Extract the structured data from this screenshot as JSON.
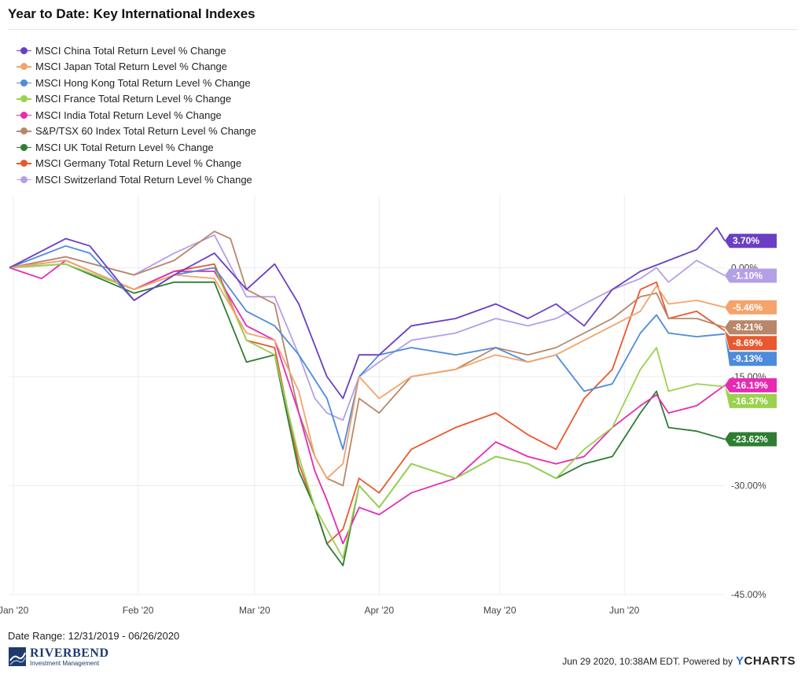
{
  "page": {
    "title": "Year to Date: Key International Indexes",
    "date_range": "Date Range: 12/31/2019 - 06/26/2020",
    "footer_stamp": "Jun 29 2020, 10:38AM EDT. Powered by",
    "brand": "YCHARTS",
    "logo_main": "RIVERBEND",
    "logo_sub": "Investment Management"
  },
  "chart_data": {
    "type": "line",
    "xlim": [
      "2019-12-31",
      "2020-06-26"
    ],
    "ylim": [
      -45,
      10
    ],
    "y_ticks": [
      0,
      -15,
      -30,
      -45
    ],
    "y_tick_labels": [
      "0.00%",
      "-15.00%",
      "-30.00%",
      "-45.00%"
    ],
    "x_ticks": [
      "2020-01-01",
      "2020-02-01",
      "2020-03-01",
      "2020-04-01",
      "2020-05-01",
      "2020-06-01"
    ],
    "x_tick_labels": [
      "Jan '20",
      "Feb '20",
      "Mar '20",
      "Apr '20",
      "May '20",
      "Jun '20"
    ],
    "grid": true,
    "legend_position": "top-left",
    "series": [
      {
        "name": "MSCI China Total Return Level % Change",
        "color": "#6a3fc4",
        "end_label": "3.70%",
        "points": [
          [
            "2019-12-31",
            0
          ],
          [
            "2020-01-14",
            4
          ],
          [
            "2020-01-20",
            3
          ],
          [
            "2020-01-31",
            -4.5
          ],
          [
            "2020-02-10",
            -1
          ],
          [
            "2020-02-20",
            2
          ],
          [
            "2020-02-28",
            -3
          ],
          [
            "2020-03-06",
            0.5
          ],
          [
            "2020-03-12",
            -5
          ],
          [
            "2020-03-19",
            -15
          ],
          [
            "2020-03-23",
            -18
          ],
          [
            "2020-03-27",
            -12
          ],
          [
            "2020-04-01",
            -12
          ],
          [
            "2020-04-09",
            -8
          ],
          [
            "2020-04-20",
            -7
          ],
          [
            "2020-04-30",
            -5
          ],
          [
            "2020-05-08",
            -7
          ],
          [
            "2020-05-15",
            -5
          ],
          [
            "2020-05-22",
            -8
          ],
          [
            "2020-05-29",
            -3
          ],
          [
            "2020-06-05",
            -0.5
          ],
          [
            "2020-06-12",
            1
          ],
          [
            "2020-06-19",
            2.5
          ],
          [
            "2020-06-24",
            5.5
          ],
          [
            "2020-06-26",
            3.7
          ]
        ]
      },
      {
        "name": "MSCI Japan Total Return Level % Change",
        "color": "#f4a36b",
        "end_label": "-5.46%",
        "points": [
          [
            "2019-12-31",
            0
          ],
          [
            "2020-01-14",
            1
          ],
          [
            "2020-01-31",
            -3
          ],
          [
            "2020-02-10",
            -1
          ],
          [
            "2020-02-20",
            -1.5
          ],
          [
            "2020-02-28",
            -9
          ],
          [
            "2020-03-06",
            -10
          ],
          [
            "2020-03-12",
            -17
          ],
          [
            "2020-03-16",
            -26
          ],
          [
            "2020-03-19",
            -29
          ],
          [
            "2020-03-23",
            -27
          ],
          [
            "2020-03-27",
            -15
          ],
          [
            "2020-04-01",
            -18
          ],
          [
            "2020-04-09",
            -15
          ],
          [
            "2020-04-20",
            -14
          ],
          [
            "2020-04-30",
            -12
          ],
          [
            "2020-05-08",
            -13
          ],
          [
            "2020-05-15",
            -12
          ],
          [
            "2020-05-22",
            -10
          ],
          [
            "2020-05-29",
            -8
          ],
          [
            "2020-06-05",
            -6
          ],
          [
            "2020-06-09",
            -2.5
          ],
          [
            "2020-06-12",
            -5
          ],
          [
            "2020-06-19",
            -4.5
          ],
          [
            "2020-06-26",
            -5.46
          ]
        ]
      },
      {
        "name": "MSCI Hong Kong Total Return Level % Change",
        "color": "#4d8bdc",
        "end_label": "-9.13%",
        "points": [
          [
            "2019-12-31",
            0
          ],
          [
            "2020-01-14",
            3
          ],
          [
            "2020-01-20",
            2
          ],
          [
            "2020-01-31",
            -4.5
          ],
          [
            "2020-02-10",
            -1
          ],
          [
            "2020-02-20",
            0
          ],
          [
            "2020-02-28",
            -6
          ],
          [
            "2020-03-06",
            -8
          ],
          [
            "2020-03-12",
            -12
          ],
          [
            "2020-03-19",
            -18
          ],
          [
            "2020-03-23",
            -25
          ],
          [
            "2020-03-27",
            -15
          ],
          [
            "2020-04-01",
            -12
          ],
          [
            "2020-04-09",
            -11
          ],
          [
            "2020-04-20",
            -12
          ],
          [
            "2020-04-30",
            -11
          ],
          [
            "2020-05-08",
            -13
          ],
          [
            "2020-05-15",
            -12
          ],
          [
            "2020-05-22",
            -17
          ],
          [
            "2020-05-29",
            -16
          ],
          [
            "2020-06-05",
            -9
          ],
          [
            "2020-06-09",
            -6.5
          ],
          [
            "2020-06-12",
            -9
          ],
          [
            "2020-06-19",
            -9.5
          ],
          [
            "2020-06-26",
            -9.13
          ]
        ]
      },
      {
        "name": "MSCI France Total Return Level % Change",
        "color": "#9ad24f",
        "end_label": "-16.37%",
        "points": [
          [
            "2019-12-31",
            0
          ],
          [
            "2020-01-14",
            0.5
          ],
          [
            "2020-01-31",
            -3
          ],
          [
            "2020-02-10",
            -1
          ],
          [
            "2020-02-20",
            0
          ],
          [
            "2020-02-28",
            -10
          ],
          [
            "2020-03-06",
            -12
          ],
          [
            "2020-03-12",
            -26
          ],
          [
            "2020-03-16",
            -33
          ],
          [
            "2020-03-19",
            -36
          ],
          [
            "2020-03-23",
            -40
          ],
          [
            "2020-03-27",
            -30
          ],
          [
            "2020-04-01",
            -33
          ],
          [
            "2020-04-09",
            -27
          ],
          [
            "2020-04-20",
            -29
          ],
          [
            "2020-04-30",
            -26
          ],
          [
            "2020-05-08",
            -27
          ],
          [
            "2020-05-15",
            -29
          ],
          [
            "2020-05-22",
            -25
          ],
          [
            "2020-05-29",
            -22
          ],
          [
            "2020-06-05",
            -14
          ],
          [
            "2020-06-09",
            -11
          ],
          [
            "2020-06-12",
            -17
          ],
          [
            "2020-06-19",
            -16
          ],
          [
            "2020-06-26",
            -16.37
          ]
        ]
      },
      {
        "name": "MSCI India Total Return Level % Change",
        "color": "#e62bb2",
        "end_label": "-16.19%",
        "points": [
          [
            "2019-12-31",
            0
          ],
          [
            "2020-01-08",
            -1.5
          ],
          [
            "2020-01-14",
            1
          ],
          [
            "2020-01-31",
            -3
          ],
          [
            "2020-02-10",
            -0.5
          ],
          [
            "2020-02-20",
            -0.5
          ],
          [
            "2020-02-28",
            -8
          ],
          [
            "2020-03-06",
            -10
          ],
          [
            "2020-03-12",
            -20
          ],
          [
            "2020-03-16",
            -28
          ],
          [
            "2020-03-19",
            -32
          ],
          [
            "2020-03-23",
            -38
          ],
          [
            "2020-03-27",
            -33
          ],
          [
            "2020-04-01",
            -34
          ],
          [
            "2020-04-09",
            -31
          ],
          [
            "2020-04-20",
            -29
          ],
          [
            "2020-04-30",
            -24
          ],
          [
            "2020-05-08",
            -26
          ],
          [
            "2020-05-15",
            -27
          ],
          [
            "2020-05-22",
            -26
          ],
          [
            "2020-05-29",
            -22
          ],
          [
            "2020-06-05",
            -19
          ],
          [
            "2020-06-09",
            -17.5
          ],
          [
            "2020-06-12",
            -20
          ],
          [
            "2020-06-19",
            -19
          ],
          [
            "2020-06-26",
            -16.19
          ]
        ]
      },
      {
        "name": "S&P/TSX 60 Index Total Return Level % Change",
        "color": "#b8876a",
        "end_label": "-8.21%",
        "points": [
          [
            "2019-12-31",
            0
          ],
          [
            "2020-01-14",
            1.5
          ],
          [
            "2020-01-31",
            -1
          ],
          [
            "2020-02-10",
            1
          ],
          [
            "2020-02-20",
            5
          ],
          [
            "2020-02-24",
            4
          ],
          [
            "2020-02-28",
            -3
          ],
          [
            "2020-03-06",
            -5
          ],
          [
            "2020-03-12",
            -20
          ],
          [
            "2020-03-16",
            -26
          ],
          [
            "2020-03-19",
            -29
          ],
          [
            "2020-03-23",
            -30
          ],
          [
            "2020-03-27",
            -18
          ],
          [
            "2020-04-01",
            -20
          ],
          [
            "2020-04-09",
            -15
          ],
          [
            "2020-04-20",
            -14
          ],
          [
            "2020-04-30",
            -11
          ],
          [
            "2020-05-08",
            -12
          ],
          [
            "2020-05-15",
            -11
          ],
          [
            "2020-05-22",
            -9
          ],
          [
            "2020-05-29",
            -7
          ],
          [
            "2020-06-05",
            -4
          ],
          [
            "2020-06-09",
            -3.5
          ],
          [
            "2020-06-12",
            -7
          ],
          [
            "2020-06-19",
            -7
          ],
          [
            "2020-06-26",
            -8.21
          ]
        ]
      },
      {
        "name": "MSCI UK Total Return Level % Change",
        "color": "#2e7d32",
        "end_label": "-23.62%",
        "points": [
          [
            "2019-12-31",
            0
          ],
          [
            "2020-01-14",
            0.5
          ],
          [
            "2020-01-31",
            -3.5
          ],
          [
            "2020-02-10",
            -2
          ],
          [
            "2020-02-20",
            -2
          ],
          [
            "2020-02-28",
            -13
          ],
          [
            "2020-03-06",
            -12
          ],
          [
            "2020-03-12",
            -28
          ],
          [
            "2020-03-16",
            -33
          ],
          [
            "2020-03-19",
            -38
          ],
          [
            "2020-03-23",
            -41
          ],
          [
            "2020-03-27",
            -30
          ],
          [
            "2020-04-01",
            -33
          ],
          [
            "2020-04-09",
            -27
          ],
          [
            "2020-04-20",
            -29
          ],
          [
            "2020-04-30",
            -26
          ],
          [
            "2020-05-08",
            -27
          ],
          [
            "2020-05-15",
            -29
          ],
          [
            "2020-05-22",
            -27
          ],
          [
            "2020-05-29",
            -26
          ],
          [
            "2020-06-05",
            -20
          ],
          [
            "2020-06-09",
            -17
          ],
          [
            "2020-06-12",
            -22
          ],
          [
            "2020-06-19",
            -22.5
          ],
          [
            "2020-06-26",
            -23.62
          ]
        ]
      },
      {
        "name": "MSCI Germany Total Return Level % Change",
        "color": "#e8592f",
        "end_label": "-8.69%",
        "points": [
          [
            "2019-12-31",
            0
          ],
          [
            "2020-01-14",
            1
          ],
          [
            "2020-01-31",
            -3
          ],
          [
            "2020-02-10",
            -0.5
          ],
          [
            "2020-02-20",
            0.5
          ],
          [
            "2020-02-28",
            -10
          ],
          [
            "2020-03-06",
            -11
          ],
          [
            "2020-03-12",
            -27
          ],
          [
            "2020-03-16",
            -33
          ],
          [
            "2020-03-19",
            -38
          ],
          [
            "2020-03-23",
            -36
          ],
          [
            "2020-03-27",
            -29
          ],
          [
            "2020-04-01",
            -31
          ],
          [
            "2020-04-09",
            -25
          ],
          [
            "2020-04-20",
            -22
          ],
          [
            "2020-04-30",
            -20
          ],
          [
            "2020-05-08",
            -23
          ],
          [
            "2020-05-15",
            -25
          ],
          [
            "2020-05-22",
            -18
          ],
          [
            "2020-05-29",
            -14
          ],
          [
            "2020-06-05",
            -3
          ],
          [
            "2020-06-09",
            -2
          ],
          [
            "2020-06-12",
            -7
          ],
          [
            "2020-06-19",
            -6
          ],
          [
            "2020-06-26",
            -8.69
          ]
        ]
      },
      {
        "name": "MSCI Switzerland Total Return Level % Change",
        "color": "#b3a0e6",
        "end_label": "-1.10%",
        "points": [
          [
            "2019-12-31",
            0
          ],
          [
            "2020-01-14",
            1.5
          ],
          [
            "2020-01-31",
            -1
          ],
          [
            "2020-02-10",
            2
          ],
          [
            "2020-02-20",
            4.5
          ],
          [
            "2020-02-28",
            -4
          ],
          [
            "2020-03-06",
            -4
          ],
          [
            "2020-03-12",
            -12
          ],
          [
            "2020-03-16",
            -18
          ],
          [
            "2020-03-19",
            -20
          ],
          [
            "2020-03-23",
            -21
          ],
          [
            "2020-03-27",
            -15
          ],
          [
            "2020-04-01",
            -13
          ],
          [
            "2020-04-09",
            -10
          ],
          [
            "2020-04-20",
            -9
          ],
          [
            "2020-04-30",
            -7
          ],
          [
            "2020-05-08",
            -8
          ],
          [
            "2020-05-15",
            -7
          ],
          [
            "2020-05-22",
            -5
          ],
          [
            "2020-05-29",
            -3
          ],
          [
            "2020-06-05",
            -1.5
          ],
          [
            "2020-06-09",
            0
          ],
          [
            "2020-06-12",
            -2
          ],
          [
            "2020-06-19",
            1
          ],
          [
            "2020-06-26",
            -1.1
          ]
        ]
      }
    ]
  }
}
